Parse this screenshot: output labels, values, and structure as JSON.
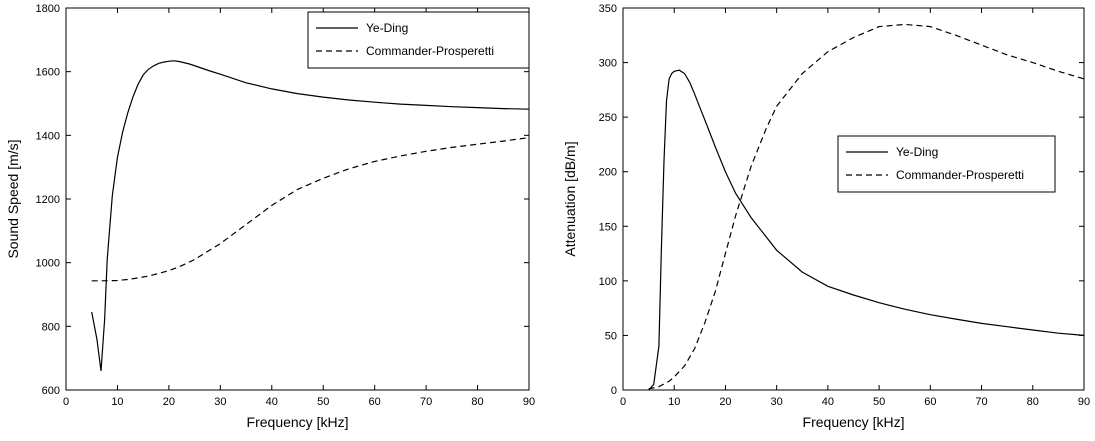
{
  "chart_data": [
    {
      "type": "line",
      "title": "",
      "xlabel": "Frequency [kHz]",
      "ylabel": "Sound Speed [m/s]",
      "xlim": [
        0,
        90
      ],
      "ylim": [
        600,
        1800
      ],
      "xticks": [
        0,
        10,
        20,
        30,
        40,
        50,
        60,
        70,
        80,
        90
      ],
      "yticks": [
        600,
        800,
        1000,
        1200,
        1400,
        1600,
        1800
      ],
      "legend_position": "top-right",
      "grid": false,
      "series": [
        {
          "name": "Ye-Ding",
          "style": "solid",
          "color": "#000000",
          "x": [
            5,
            6,
            6.8,
            7.5,
            8,
            9,
            10,
            11,
            12,
            13,
            14,
            15,
            16,
            17,
            18,
            19,
            20,
            21,
            22,
            24,
            26,
            28,
            30,
            35,
            40,
            45,
            50,
            55,
            60,
            65,
            70,
            75,
            80,
            85,
            90
          ],
          "y": [
            845,
            760,
            660,
            820,
            1010,
            1210,
            1330,
            1410,
            1470,
            1520,
            1560,
            1590,
            1607,
            1618,
            1626,
            1630,
            1633,
            1634,
            1632,
            1624,
            1613,
            1602,
            1592,
            1565,
            1546,
            1531,
            1520,
            1511,
            1504,
            1498,
            1494,
            1490,
            1487,
            1484,
            1482
          ]
        },
        {
          "name": "Commander-Prosperetti",
          "style": "dashed",
          "color": "#000000",
          "x": [
            5,
            7,
            10,
            12,
            14,
            16,
            18,
            20,
            22,
            25,
            30,
            35,
            40,
            45,
            50,
            55,
            60,
            65,
            70,
            75,
            80,
            85,
            90
          ],
          "y": [
            943,
            943,
            944,
            947,
            952,
            958,
            966,
            975,
            987,
            1010,
            1060,
            1120,
            1180,
            1230,
            1265,
            1295,
            1318,
            1335,
            1350,
            1362,
            1372,
            1382,
            1393
          ]
        }
      ]
    },
    {
      "type": "line",
      "title": "",
      "xlabel": "Frequency [kHz]",
      "ylabel": "Attenuation [dB/m]",
      "xlim": [
        0,
        90
      ],
      "ylim": [
        0,
        350
      ],
      "xticks": [
        0,
        10,
        20,
        30,
        40,
        50,
        60,
        70,
        80,
        90
      ],
      "yticks": [
        0,
        50,
        100,
        150,
        200,
        250,
        300,
        350
      ],
      "legend_position": "center-right",
      "grid": false,
      "series": [
        {
          "name": "Ye-Ding",
          "style": "solid",
          "color": "#000000",
          "x": [
            5,
            6,
            7,
            7.5,
            8,
            8.5,
            9,
            9.5,
            10,
            11,
            12,
            13,
            14,
            15,
            16,
            18,
            20,
            22,
            25,
            30,
            35,
            40,
            45,
            50,
            55,
            60,
            65,
            70,
            75,
            80,
            85,
            90
          ],
          "y": [
            0,
            5,
            40,
            130,
            210,
            265,
            285,
            290,
            292,
            293,
            290,
            282,
            271,
            259,
            247,
            223,
            200,
            180,
            158,
            128,
            108,
            95,
            87,
            80,
            74,
            69,
            65,
            61,
            58,
            55,
            52,
            50
          ]
        },
        {
          "name": "Commander-Prosperetti",
          "style": "dashed",
          "color": "#000000",
          "x": [
            5,
            7,
            9,
            10,
            12,
            14,
            16,
            18,
            20,
            22,
            25,
            28,
            30,
            35,
            40,
            45,
            50,
            55,
            60,
            65,
            70,
            75,
            80,
            85,
            90
          ],
          "y": [
            1,
            3,
            8,
            12,
            22,
            38,
            62,
            90,
            125,
            160,
            205,
            240,
            260,
            290,
            310,
            323,
            333,
            335,
            333,
            325,
            316,
            307,
            300,
            292,
            285
          ]
        }
      ]
    }
  ]
}
